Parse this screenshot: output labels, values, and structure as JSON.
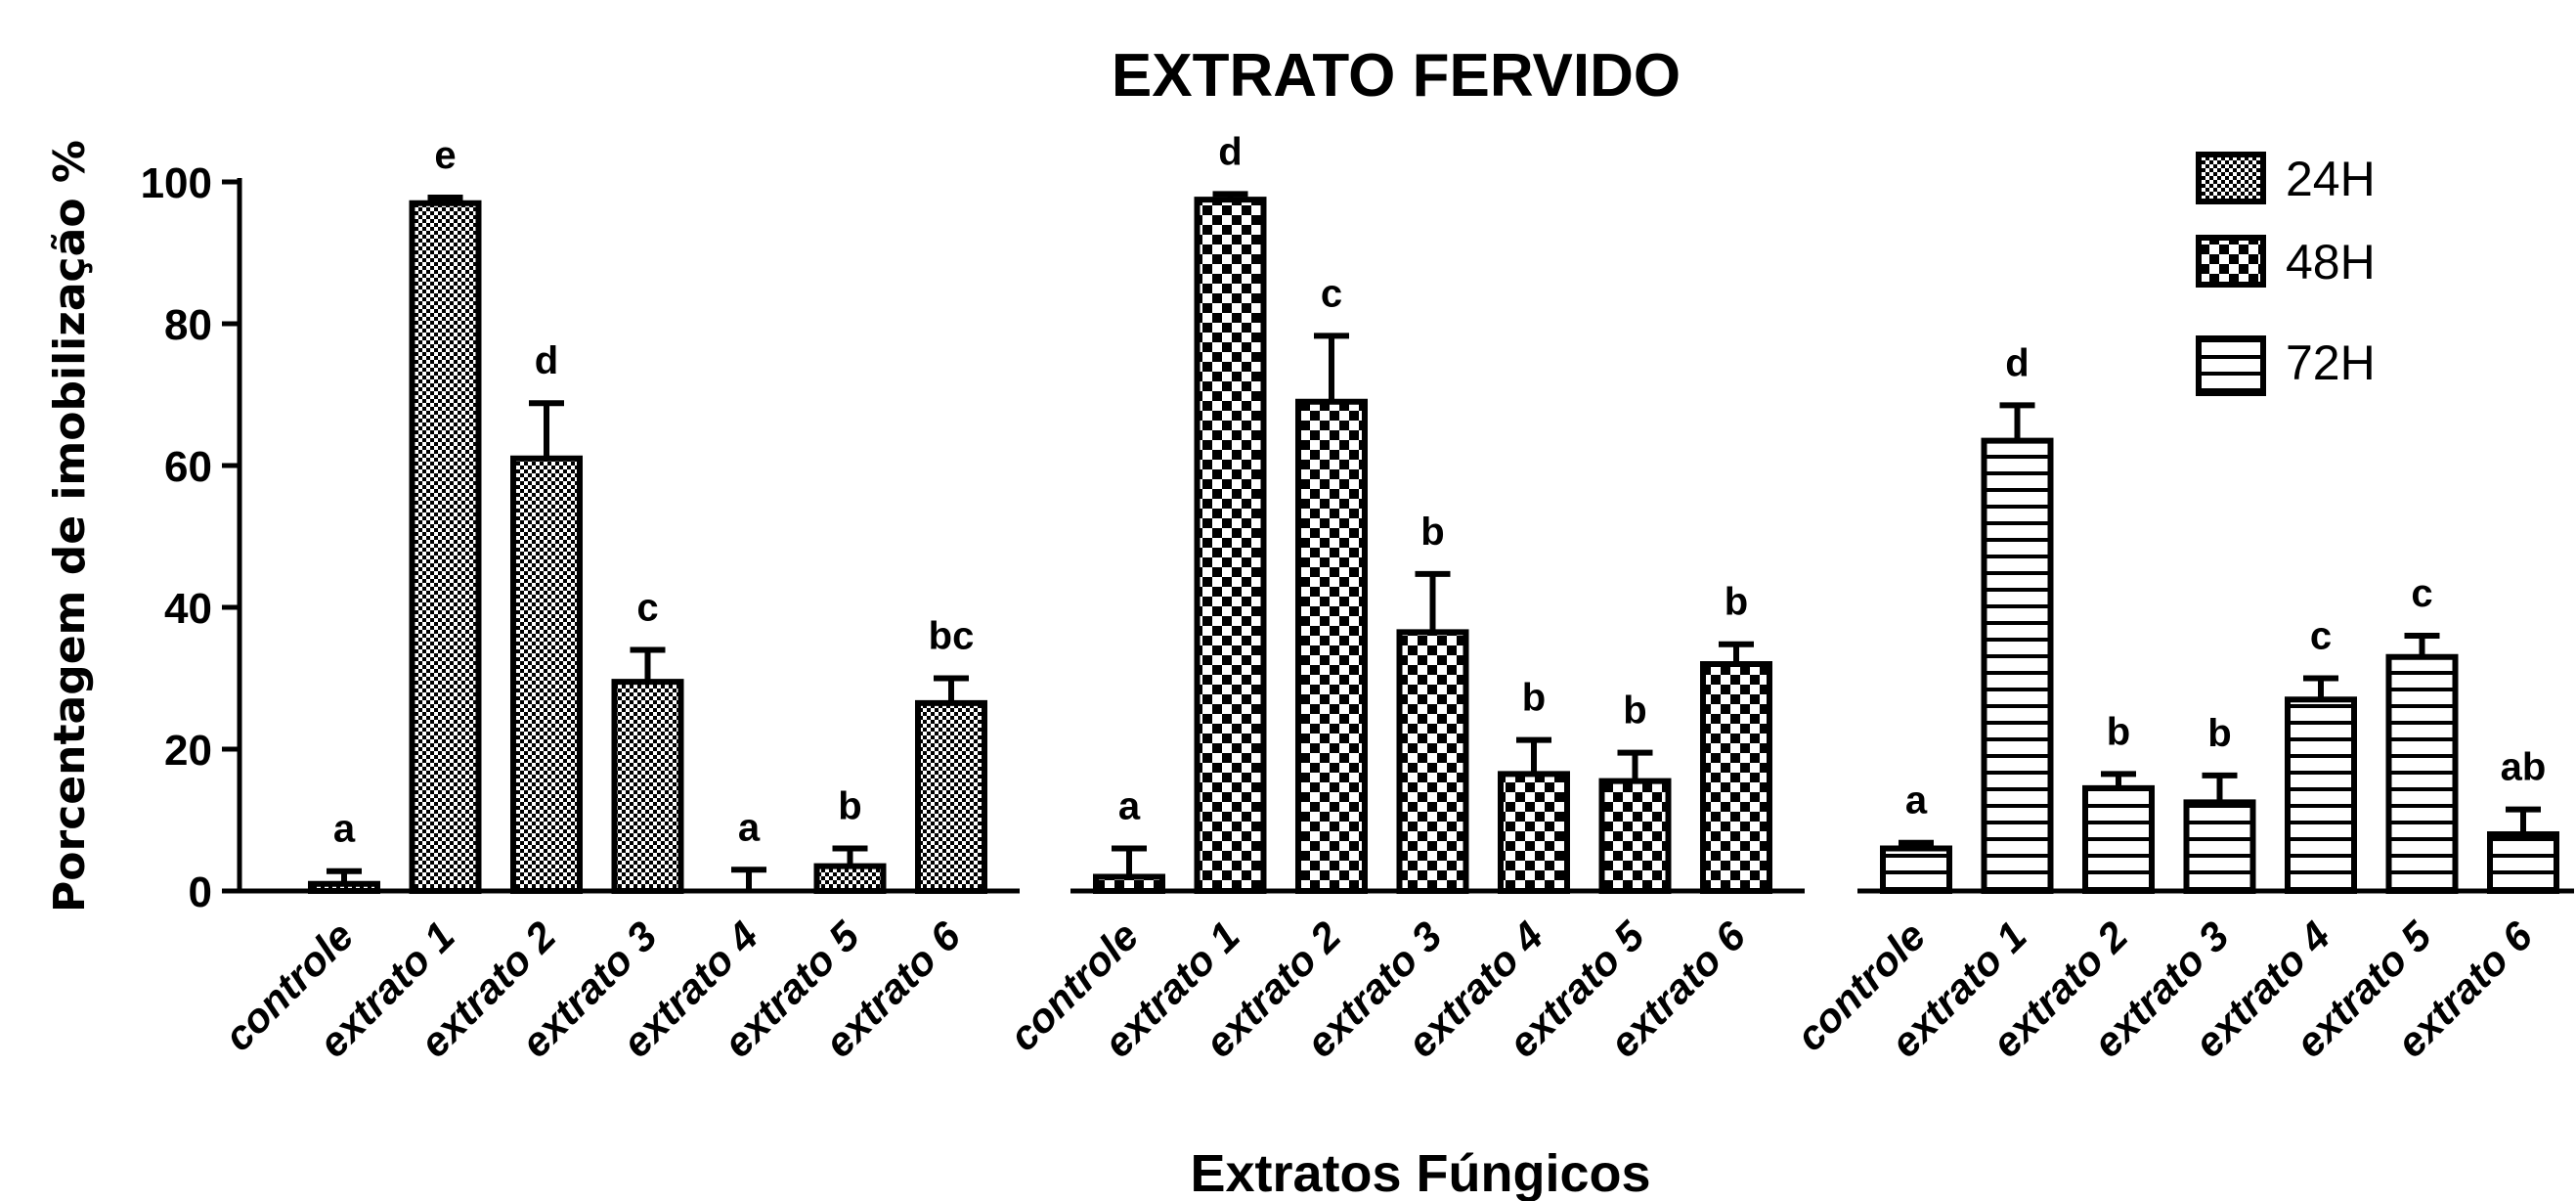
{
  "chart_data": {
    "type": "bar",
    "title": "EXTRATO FERVIDO",
    "xlabel": "Extratos Fúngicos",
    "ylabel": "Porcentagem de imobilização %",
    "ylim": [
      0,
      100
    ],
    "yticks": [
      "0",
      "20",
      "40",
      "60",
      "80",
      "100"
    ],
    "categories": [
      "controle",
      "extrato 1",
      "extrato 2",
      "extrato 3",
      "extrato 4",
      "extrato 5",
      "extrato 6"
    ],
    "legend_position": "top-right",
    "series": [
      {
        "name": "24H",
        "pattern": "fine-check",
        "values": [
          1,
          97,
          61,
          29.5,
          0,
          3.5,
          26.5
        ],
        "errors": [
          1.8,
          0.8,
          7.8,
          4.5,
          3,
          2.5,
          3.5
        ],
        "letters": [
          "a",
          "e",
          "d",
          "c",
          "a",
          "b",
          "bc"
        ]
      },
      {
        "name": "48H",
        "pattern": "checker",
        "values": [
          2,
          97.5,
          69,
          36.5,
          16.5,
          15.5,
          32
        ],
        "errors": [
          4,
          0.8,
          9.3,
          8.2,
          4.8,
          4,
          2.8
        ],
        "letters": [
          "a",
          "d",
          "c",
          "b",
          "b",
          "b",
          "b"
        ]
      },
      {
        "name": "72H",
        "pattern": "horizontal",
        "values": [
          6,
          63.5,
          14.5,
          12.5,
          27,
          33,
          8
        ],
        "errors": [
          0.8,
          5,
          2,
          3.8,
          3,
          3,
          3.5
        ],
        "letters": [
          "a",
          "d",
          "b",
          "b",
          "c",
          "c",
          "ab"
        ]
      }
    ]
  }
}
